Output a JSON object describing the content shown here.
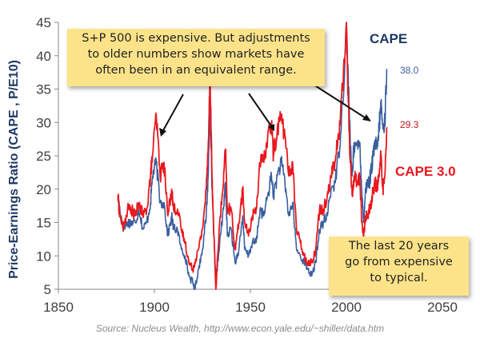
{
  "chart_data": {
    "type": "line",
    "ylabel": "Price-Earnings Ratio (CAPE , P/E10)",
    "xlabel": "",
    "xlim": [
      1850,
      2050
    ],
    "ylim": [
      5,
      45
    ],
    "x_ticks": [
      "1850",
      "1900",
      "1950",
      "2000",
      "2050"
    ],
    "y_ticks": [
      "5",
      "10",
      "15",
      "20",
      "25",
      "30",
      "35",
      "40",
      "45"
    ],
    "grid": false,
    "legend": "inline labels",
    "series": [
      {
        "name": "CAPE",
        "color": "#3a5f9e",
        "end_label": "38.0",
        "points": [
          [
            1881,
            19
          ],
          [
            1882,
            17
          ],
          [
            1884,
            14
          ],
          [
            1886,
            15
          ],
          [
            1888,
            15
          ],
          [
            1890,
            15
          ],
          [
            1892,
            17
          ],
          [
            1894,
            14
          ],
          [
            1896,
            15
          ],
          [
            1898,
            18
          ],
          [
            1899,
            22
          ],
          [
            1901,
            24
          ],
          [
            1903,
            18
          ],
          [
            1905,
            18
          ],
          [
            1907,
            13
          ],
          [
            1909,
            16
          ],
          [
            1910,
            14
          ],
          [
            1912,
            14
          ],
          [
            1914,
            11
          ],
          [
            1916,
            10
          ],
          [
            1918,
            7
          ],
          [
            1920,
            6
          ],
          [
            1921,
            5
          ],
          [
            1923,
            8
          ],
          [
            1925,
            11
          ],
          [
            1927,
            16
          ],
          [
            1928,
            22
          ],
          [
            1929,
            32.6
          ],
          [
            1930,
            20
          ],
          [
            1931,
            13
          ],
          [
            1932,
            6
          ],
          [
            1934,
            12
          ],
          [
            1936,
            17
          ],
          [
            1937,
            21
          ],
          [
            1938,
            13
          ],
          [
            1940,
            14
          ],
          [
            1942,
            9
          ],
          [
            1944,
            11
          ],
          [
            1946,
            16
          ],
          [
            1947,
            11
          ],
          [
            1949,
            10
          ],
          [
            1951,
            12
          ],
          [
            1953,
            12
          ],
          [
            1955,
            17
          ],
          [
            1957,
            16
          ],
          [
            1959,
            19
          ],
          [
            1961,
            22
          ],
          [
            1962,
            19
          ],
          [
            1964,
            22
          ],
          [
            1966,
            24
          ],
          [
            1968,
            21
          ],
          [
            1970,
            16
          ],
          [
            1972,
            18
          ],
          [
            1974,
            11
          ],
          [
            1976,
            10
          ],
          [
            1978,
            9
          ],
          [
            1980,
            8
          ],
          [
            1982,
            7
          ],
          [
            1984,
            9
          ],
          [
            1986,
            14
          ],
          [
            1988,
            15
          ],
          [
            1990,
            16
          ],
          [
            1992,
            20
          ],
          [
            1994,
            21
          ],
          [
            1996,
            25
          ],
          [
            1998,
            33
          ],
          [
            2000,
            44
          ],
          [
            2001,
            36
          ],
          [
            2002,
            27
          ],
          [
            2003,
            22
          ],
          [
            2004,
            27
          ],
          [
            2006,
            26
          ],
          [
            2007,
            27
          ],
          [
            2008,
            20
          ],
          [
            2009,
            15
          ],
          [
            2010,
            20
          ],
          [
            2011,
            21
          ],
          [
            2012,
            21
          ],
          [
            2013,
            23
          ],
          [
            2014,
            25
          ],
          [
            2015,
            27
          ],
          [
            2016,
            26
          ],
          [
            2017,
            29
          ],
          [
            2018,
            33
          ],
          [
            2019,
            29
          ],
          [
            2020,
            30
          ],
          [
            2021,
            38
          ]
        ]
      },
      {
        "name": "CAPE 3.0",
        "color": "#e8191f",
        "end_label": "29.3",
        "points": [
          [
            1881,
            19
          ],
          [
            1882,
            16
          ],
          [
            1884,
            14
          ],
          [
            1886,
            17
          ],
          [
            1888,
            17
          ],
          [
            1890,
            16
          ],
          [
            1892,
            18
          ],
          [
            1894,
            16
          ],
          [
            1896,
            17
          ],
          [
            1898,
            22
          ],
          [
            1899,
            25
          ],
          [
            1901,
            31
          ],
          [
            1903,
            22
          ],
          [
            1905,
            24
          ],
          [
            1907,
            16
          ],
          [
            1909,
            20
          ],
          [
            1910,
            17
          ],
          [
            1912,
            17
          ],
          [
            1914,
            14
          ],
          [
            1916,
            12
          ],
          [
            1918,
            9
          ],
          [
            1920,
            8
          ],
          [
            1921,
            9
          ],
          [
            1923,
            11
          ],
          [
            1925,
            14
          ],
          [
            1927,
            20
          ],
          [
            1928,
            26
          ],
          [
            1929,
            38
          ],
          [
            1930,
            22
          ],
          [
            1931,
            13
          ],
          [
            1932,
            5
          ],
          [
            1934,
            15
          ],
          [
            1936,
            21
          ],
          [
            1937,
            26
          ],
          [
            1938,
            17
          ],
          [
            1940,
            17
          ],
          [
            1942,
            11
          ],
          [
            1944,
            15
          ],
          [
            1946,
            20
          ],
          [
            1947,
            15
          ],
          [
            1949,
            13
          ],
          [
            1951,
            16
          ],
          [
            1953,
            17
          ],
          [
            1955,
            24
          ],
          [
            1957,
            24
          ],
          [
            1959,
            28
          ],
          [
            1961,
            30
          ],
          [
            1962,
            25
          ],
          [
            1964,
            29
          ],
          [
            1966,
            31
          ],
          [
            1968,
            28
          ],
          [
            1970,
            22
          ],
          [
            1972,
            24
          ],
          [
            1974,
            14
          ],
          [
            1976,
            12
          ],
          [
            1978,
            10
          ],
          [
            1980,
            9
          ],
          [
            1982,
            9
          ],
          [
            1984,
            11
          ],
          [
            1986,
            17
          ],
          [
            1988,
            17
          ],
          [
            1990,
            19
          ],
          [
            1992,
            22
          ],
          [
            1994,
            24
          ],
          [
            1996,
            28
          ],
          [
            1998,
            35
          ],
          [
            2000,
            45
          ],
          [
            2001,
            33
          ],
          [
            2002,
            24
          ],
          [
            2003,
            19
          ],
          [
            2004,
            22
          ],
          [
            2006,
            21
          ],
          [
            2007,
            22
          ],
          [
            2008,
            15
          ],
          [
            2009,
            13
          ],
          [
            2010,
            16
          ],
          [
            2011,
            16
          ],
          [
            2012,
            17
          ],
          [
            2013,
            18
          ],
          [
            2014,
            20
          ],
          [
            2015,
            21
          ],
          [
            2016,
            20
          ],
          [
            2017,
            22
          ],
          [
            2018,
            25
          ],
          [
            2019,
            20
          ],
          [
            2020,
            22
          ],
          [
            2021,
            29.3
          ]
        ]
      }
    ],
    "annotations": [
      {
        "lines": [
          "S+P 500 is expensive. But adjustments",
          "to older numbers show markets have",
          "often been in an equivalent range."
        ]
      },
      {
        "lines": [
          "The last 20 years",
          "go from expensive",
          "to typical."
        ]
      }
    ]
  },
  "source": "Source:  Nucleus Wealth, http://www.econ.yale.edu/~shiller/data.htm"
}
